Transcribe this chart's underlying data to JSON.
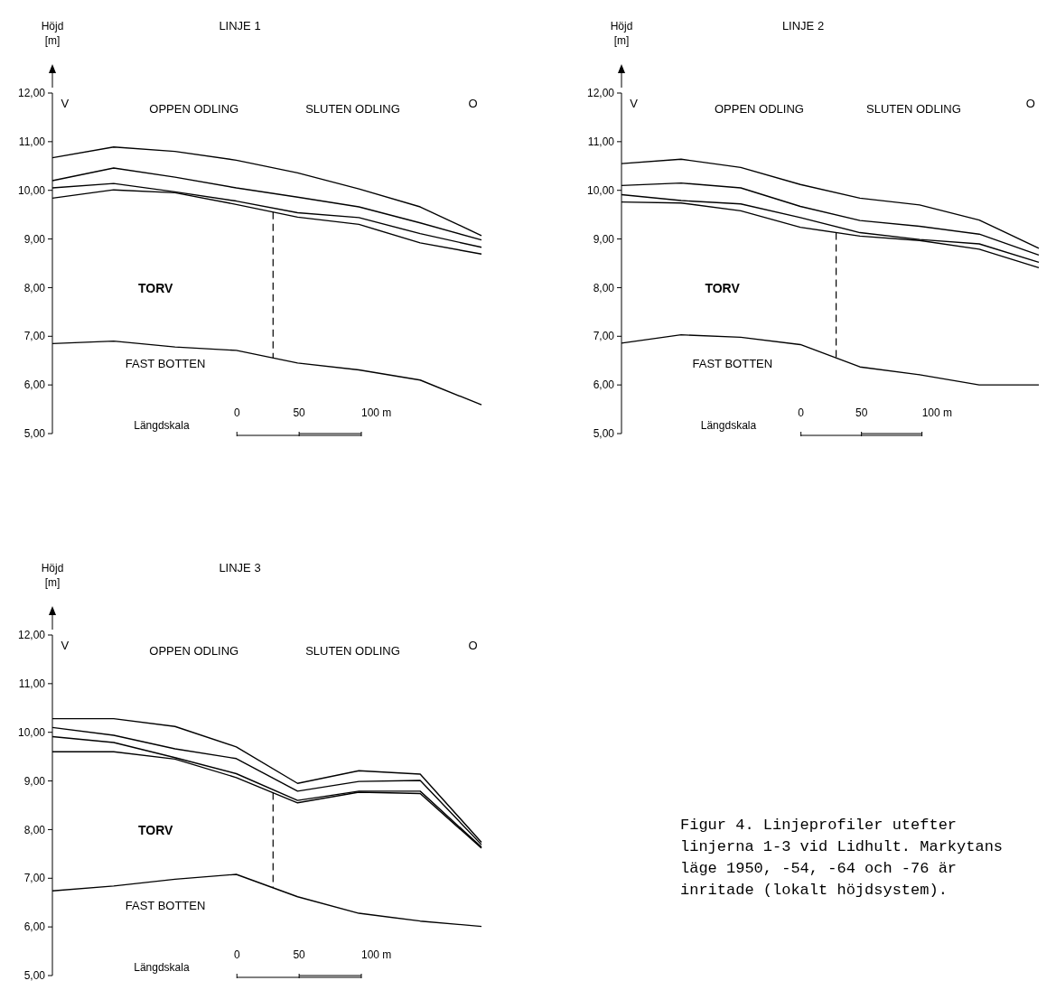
{
  "chart_data": [
    {
      "type": "line",
      "title": "LINJE 1",
      "ylabel": "Höjd [m]",
      "categories": [
        null,
        null,
        null,
        null,
        null,
        null,
        null,
        null
      ],
      "series": [
        {
          "color": "#000000",
          "values": [
            10.67,
            10.89,
            10.8,
            10.62,
            10.36,
            10.03,
            9.66,
            9.07
          ]
        },
        {
          "color": "#000000",
          "values": [
            10.2,
            10.46,
            10.27,
            10.05,
            9.86,
            9.66,
            9.33,
            8.98
          ]
        },
        {
          "color": "#000000",
          "values": [
            10.05,
            10.14,
            9.97,
            9.78,
            9.54,
            9.44,
            9.11,
            8.83
          ]
        },
        {
          "color": "#000000",
          "values": [
            9.84,
            10.01,
            9.95,
            9.71,
            9.45,
            9.3,
            8.92,
            8.69
          ]
        },
        {
          "color": "#000000",
          "values": [
            6.85,
            6.9,
            6.78,
            6.71,
            6.45,
            6.31,
            6.1,
            5.59
          ]
        }
      ],
      "ylim": [
        5,
        12
      ],
      "yticks": [
        {
          "value": 5,
          "label": "5,00"
        },
        {
          "value": 6,
          "label": "6,00"
        },
        {
          "value": 7,
          "label": "7,00"
        },
        {
          "value": 8,
          "label": "8,00"
        },
        {
          "value": 9,
          "label": "9,00"
        },
        {
          "value": 10,
          "label": "10,00"
        },
        {
          "value": 11,
          "label": "11,00"
        },
        {
          "value": 12,
          "label": "12,00"
        }
      ],
      "annotations": [
        "V",
        "OPPEN ODLING",
        "SLUTEN ODLING",
        "O",
        "TORV",
        "FAST BOTTEN",
        "Längdskala",
        "0",
        "50",
        "100 m"
      ],
      "grid": false,
      "line_style": "solid",
      "tick_labels": "y"
    },
    {
      "type": "line",
      "title": "LINJE 2",
      "ylabel": "Höjd [m]",
      "categories": [
        null,
        null,
        null,
        null,
        null,
        null,
        null,
        null
      ],
      "series": [
        {
          "color": "#000000",
          "values": [
            10.55,
            10.64,
            10.47,
            10.12,
            9.84,
            9.7,
            9.39,
            8.81
          ]
        },
        {
          "color": "#000000",
          "values": [
            10.1,
            10.15,
            10.05,
            9.67,
            9.38,
            9.26,
            9.1,
            8.67
          ]
        },
        {
          "color": "#000000",
          "values": [
            9.91,
            9.79,
            9.72,
            9.44,
            9.13,
            8.99,
            8.9,
            8.52
          ]
        },
        {
          "color": "#000000",
          "values": [
            9.76,
            9.74,
            9.58,
            9.24,
            9.06,
            8.97,
            8.79,
            8.41
          ]
        },
        {
          "color": "#000000",
          "values": [
            6.86,
            7.03,
            6.98,
            6.83,
            6.37,
            6.21,
            6.0,
            6.0
          ]
        }
      ],
      "ylim": [
        5,
        12
      ],
      "yticks": [
        {
          "value": 5,
          "label": "5,00"
        },
        {
          "value": 6,
          "label": "6,00"
        },
        {
          "value": 7,
          "label": "7,00"
        },
        {
          "value": 8,
          "label": "8,00"
        },
        {
          "value": 9,
          "label": "9,00"
        },
        {
          "value": 10,
          "label": "10,00"
        },
        {
          "value": 11,
          "label": "11,00"
        },
        {
          "value": 12,
          "label": "12,00"
        }
      ],
      "annotations": [
        "V",
        "OPPEN ODLING",
        "SLUTEN ODLING",
        "O",
        "TORV",
        "FAST BOTTEN",
        "Längdskala",
        "0",
        "50",
        "100 m"
      ],
      "grid": false,
      "line_style": "solid",
      "tick_labels": "y"
    },
    {
      "type": "line",
      "title": "LINJE 3",
      "ylabel": "Höjd [m]",
      "categories": [
        null,
        null,
        null,
        null,
        null,
        null,
        null,
        null
      ],
      "series": [
        {
          "color": "#000000",
          "values": [
            10.28,
            10.28,
            10.12,
            9.7,
            8.95,
            9.21,
            9.14,
            7.74
          ]
        },
        {
          "color": "#000000",
          "values": [
            10.1,
            9.94,
            9.66,
            9.46,
            8.79,
            8.99,
            9.01,
            7.69
          ]
        },
        {
          "color": "#000000",
          "values": [
            9.91,
            9.79,
            9.48,
            9.15,
            8.6,
            8.79,
            8.79,
            7.64
          ]
        },
        {
          "color": "#000000",
          "values": [
            9.6,
            9.6,
            9.45,
            9.07,
            8.55,
            8.77,
            8.74,
            7.62
          ]
        },
        {
          "color": "#000000",
          "values": [
            6.74,
            6.84,
            6.98,
            7.08,
            6.62,
            6.28,
            6.12,
            6.01
          ]
        }
      ],
      "ylim": [
        5,
        12
      ],
      "yticks": [
        {
          "value": 5,
          "label": "5,00"
        },
        {
          "value": 6,
          "label": "6,00"
        },
        {
          "value": 7,
          "label": "7,00"
        },
        {
          "value": 8,
          "label": "8,00"
        },
        {
          "value": 9,
          "label": "9,00"
        },
        {
          "value": 10,
          "label": "10,00"
        },
        {
          "value": 11,
          "label": "11,00"
        },
        {
          "value": 12,
          "label": "12,00"
        }
      ],
      "annotations": [
        "V",
        "OPPEN ODLING",
        "SLUTEN ODLING",
        "O",
        "TORV",
        "FAST BOTTEN",
        "Längdskala",
        "0",
        "50",
        "100 m",
        "Figur 4. Linjeprofiler utefter linjerna 1-3 vid Lidhult. Markytans läge 1950, -54, -64 och -76 är inritade (lokalt höjdsystem)."
      ],
      "grid": false,
      "line_style": "solid",
      "tick_labels": "y"
    }
  ]
}
